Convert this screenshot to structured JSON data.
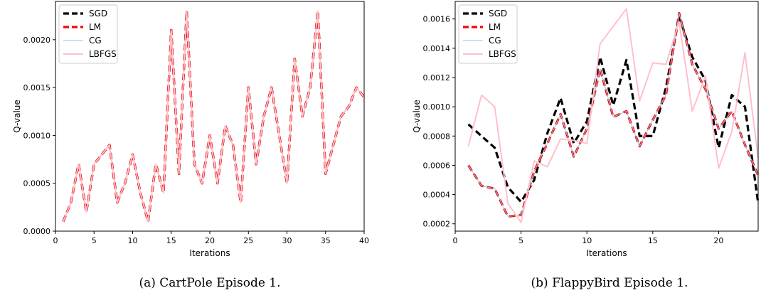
{
  "chart_data": [
    {
      "type": "line",
      "caption": "(a) CartPole Episode 1.",
      "xlabel": "Iterations",
      "ylabel": "Q-value",
      "xlim": [
        0,
        40
      ],
      "ylim": [
        0.0,
        0.0024
      ],
      "xticks": [
        0,
        5,
        10,
        15,
        20,
        25,
        30,
        35,
        40
      ],
      "xtick_labels": [
        "0",
        "5",
        "10",
        "15",
        "20",
        "25",
        "30",
        "35",
        "40"
      ],
      "yticks": [
        0.0,
        0.0005,
        0.001,
        0.0015,
        0.002
      ],
      "ytick_labels": [
        "0.0000",
        "0.0005",
        "0.0010",
        "0.0015",
        "0.0020"
      ],
      "legend_position": "top-left",
      "grid": false,
      "x": [
        1,
        2,
        3,
        4,
        5,
        6,
        7,
        8,
        9,
        10,
        11,
        12,
        13,
        14,
        15,
        16,
        17,
        18,
        19,
        20,
        21,
        22,
        23,
        24,
        25,
        26,
        27,
        28,
        29,
        30,
        31,
        32,
        33,
        34,
        35,
        36,
        37,
        38,
        39,
        40
      ],
      "series": [
        {
          "name": "SGD",
          "color": "#000000",
          "style": "dashed",
          "values": [
            0.0001,
            0.0003,
            0.0007,
            0.0002,
            0.0007,
            0.0008,
            0.0009,
            0.0003,
            0.0005,
            0.0008,
            0.0004,
            0.0001,
            0.0007,
            0.0004,
            0.0021,
            0.0006,
            0.0023,
            0.0007,
            0.0005,
            0.001,
            0.0005,
            0.0011,
            0.0009,
            0.0003,
            0.0015,
            0.0007,
            0.0012,
            0.0015,
            0.001,
            0.0005,
            0.0018,
            0.0012,
            0.0015,
            0.0023,
            0.0006,
            0.0009,
            0.0012,
            0.0013,
            0.0015,
            0.0014
          ]
        },
        {
          "name": "LM",
          "color": "#ff0000",
          "style": "dashed",
          "values": [
            0.0001,
            0.0003,
            0.0007,
            0.0002,
            0.0007,
            0.0008,
            0.0009,
            0.0003,
            0.0005,
            0.0008,
            0.0004,
            0.0001,
            0.0007,
            0.0004,
            0.0021,
            0.0006,
            0.0023,
            0.0007,
            0.0005,
            0.001,
            0.0005,
            0.0011,
            0.0009,
            0.0003,
            0.0015,
            0.0007,
            0.0012,
            0.0015,
            0.001,
            0.0005,
            0.0018,
            0.0012,
            0.0015,
            0.0023,
            0.0006,
            0.0009,
            0.0012,
            0.0013,
            0.0015,
            0.0014
          ]
        },
        {
          "name": "CG",
          "color": "#87ceeb",
          "style": "solid",
          "values": [
            0.0001,
            0.0003,
            0.0007,
            0.0002,
            0.0007,
            0.0008,
            0.0009,
            0.0003,
            0.0005,
            0.0008,
            0.0004,
            0.0001,
            0.0007,
            0.0004,
            0.0021,
            0.0006,
            0.0023,
            0.0007,
            0.0005,
            0.001,
            0.0005,
            0.0011,
            0.0009,
            0.0003,
            0.0015,
            0.0007,
            0.0012,
            0.0015,
            0.001,
            0.0005,
            0.0018,
            0.0012,
            0.0015,
            0.0023,
            0.0006,
            0.0009,
            0.0012,
            0.0013,
            0.0015,
            0.0014
          ]
        },
        {
          "name": "LBFGS",
          "color": "#ffc0cb",
          "style": "solid",
          "values": [
            0.0001,
            0.0003,
            0.0007,
            0.0002,
            0.0007,
            0.0008,
            0.0009,
            0.0003,
            0.0005,
            0.0008,
            0.0004,
            0.0001,
            0.0007,
            0.0004,
            0.0021,
            0.0006,
            0.0023,
            0.0007,
            0.0005,
            0.001,
            0.0005,
            0.0011,
            0.0009,
            0.0003,
            0.0015,
            0.0007,
            0.0012,
            0.0015,
            0.001,
            0.0005,
            0.0018,
            0.0012,
            0.0015,
            0.0023,
            0.0006,
            0.0009,
            0.0012,
            0.0013,
            0.0015,
            0.0014
          ]
        }
      ]
    },
    {
      "type": "line",
      "caption": "(b) FlappyBird Episode 1.",
      "xlabel": "Iterations",
      "ylabel": "Q-value",
      "xlim": [
        0,
        23
      ],
      "ylim": [
        0.00015,
        0.00172
      ],
      "xticks": [
        0,
        5,
        10,
        15,
        20
      ],
      "xtick_labels": [
        "0",
        "5",
        "10",
        "15",
        "20"
      ],
      "yticks": [
        0.0002,
        0.0004,
        0.0006,
        0.0008,
        0.001,
        0.0012,
        0.0014,
        0.0016
      ],
      "ytick_labels": [
        "0.0002",
        "0.0004",
        "0.0006",
        "0.0008",
        "0.0010",
        "0.0012",
        "0.0014",
        "0.0016"
      ],
      "legend_position": "top-left",
      "grid": false,
      "x": [
        1,
        2,
        3,
        4,
        5,
        6,
        7,
        8,
        9,
        10,
        11,
        12,
        13,
        14,
        15,
        16,
        17,
        18,
        19,
        20,
        21,
        22,
        23
      ],
      "series": [
        {
          "name": "SGD",
          "color": "#000000",
          "style": "dashed",
          "values": [
            0.00088,
            0.0008,
            0.00072,
            0.00045,
            0.00035,
            0.0005,
            0.00082,
            0.00106,
            0.00075,
            0.0009,
            0.00134,
            0.00101,
            0.00132,
            0.0008,
            0.0008,
            0.00113,
            0.00162,
            0.00134,
            0.00118,
            0.00072,
            0.00108,
            0.001,
            0.00034
          ]
        },
        {
          "name": "LM",
          "color": "#ff0000",
          "style": "dashed",
          "values": [
            0.0006,
            0.00046,
            0.00044,
            0.00025,
            0.00026,
            0.00056,
            0.00075,
            0.00095,
            0.00066,
            0.00085,
            0.00126,
            0.00093,
            0.00097,
            0.00073,
            0.00091,
            0.00108,
            0.00164,
            0.00129,
            0.00112,
            0.00085,
            0.00097,
            0.00074,
            0.00053
          ]
        },
        {
          "name": "CG",
          "color": "#87ceeb",
          "style": "solid",
          "values": [
            0.0006,
            0.00046,
            0.00044,
            0.00025,
            0.00026,
            0.00056,
            0.00075,
            0.00095,
            0.00066,
            0.00085,
            0.00126,
            0.00093,
            0.00097,
            0.00073,
            0.00091,
            0.00108,
            0.00164,
            0.00129,
            0.00112,
            0.00085,
            0.00097,
            0.00074,
            0.00053
          ]
        },
        {
          "name": "LBFGS",
          "color": "#ffc0cb",
          "style": "solid",
          "values": [
            0.00073,
            0.00108,
            0.001,
            0.00034,
            0.00021,
            0.00063,
            0.00059,
            0.00078,
            0.00077,
            0.00075,
            0.00143,
            0.00155,
            0.00167,
            0.00104,
            0.0013,
            0.00129,
            0.00158,
            0.00097,
            0.00121,
            0.00058,
            0.00083,
            0.00137,
            0.00065
          ]
        }
      ]
    }
  ]
}
